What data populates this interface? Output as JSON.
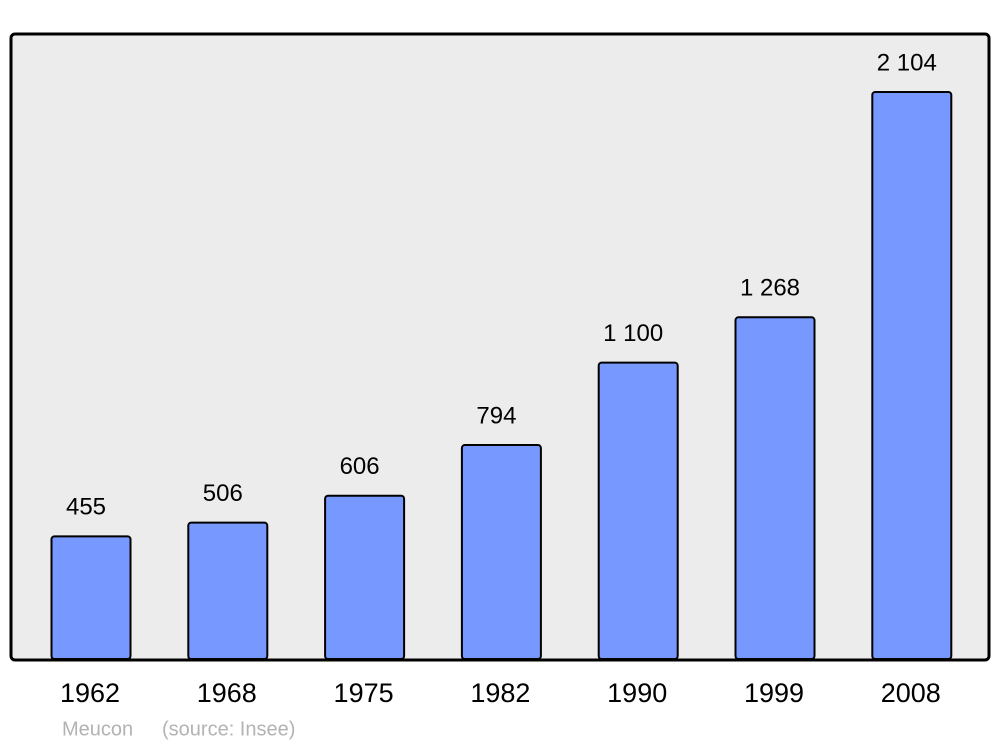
{
  "chart_data": {
    "type": "bar",
    "categories": [
      "1962",
      "1968",
      "1975",
      "1982",
      "1990",
      "1999",
      "2008"
    ],
    "values": [
      455,
      506,
      606,
      794,
      1100,
      1268,
      2104
    ],
    "value_labels": [
      "455",
      "506",
      "606",
      "794",
      "1 100",
      "1 268",
      "2 104"
    ],
    "color": "#7799ff",
    "caption": "Meucon",
    "source": "(source: Insee)"
  }
}
